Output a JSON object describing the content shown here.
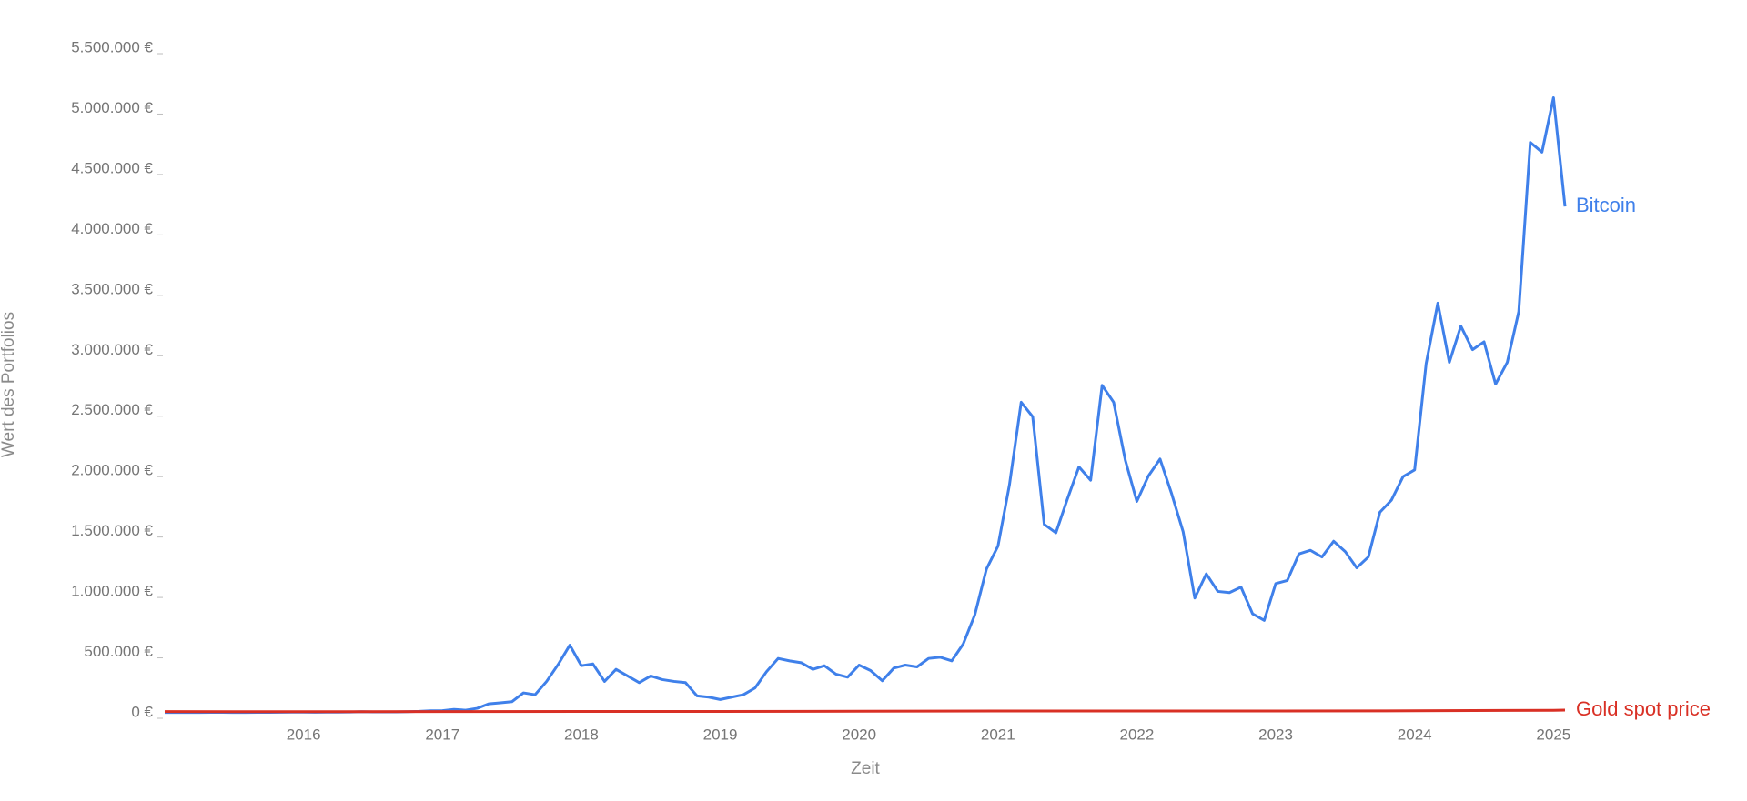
{
  "chart_data": {
    "type": "line",
    "x_label": "Zeit",
    "y_label": "Wert des Portfolios",
    "grid": false,
    "xlim": [
      2015,
      2025.083
    ],
    "xticks": [
      2016,
      2017,
      2018,
      2019,
      2020,
      2021,
      2022,
      2023,
      2024,
      2025
    ],
    "ylim": [
      0,
      5500000
    ],
    "yticks": [
      {
        "value": 0,
        "label": "0 €"
      },
      {
        "value": 500000,
        "label": "500.000 €"
      },
      {
        "value": 1000000,
        "label": "1.000.000 €"
      },
      {
        "value": 1500000,
        "label": "1.500.000 €"
      },
      {
        "value": 2000000,
        "label": "2.000.000 €"
      },
      {
        "value": 2500000,
        "label": "2.500.000 €"
      },
      {
        "value": 3000000,
        "label": "3.000.000 €"
      },
      {
        "value": 3500000,
        "label": "3.500.000 €"
      },
      {
        "value": 4000000,
        "label": "4.000.000 €"
      },
      {
        "value": 4500000,
        "label": "4.500.000 €"
      },
      {
        "value": 5000000,
        "label": "5.000.000 €"
      },
      {
        "value": 5500000,
        "label": "5.500.000 €"
      }
    ],
    "series": [
      {
        "name": "Bitcoin",
        "color": "#3f80ea",
        "x": [
          2015,
          2015.083,
          2015.167,
          2015.25,
          2015.333,
          2015.417,
          2015.5,
          2015.583,
          2015.667,
          2015.75,
          2015.833,
          2015.917,
          2016,
          2016.083,
          2016.167,
          2016.25,
          2016.333,
          2016.417,
          2016.5,
          2016.583,
          2016.667,
          2016.75,
          2016.833,
          2016.917,
          2017,
          2017.083,
          2017.167,
          2017.25,
          2017.333,
          2017.417,
          2017.5,
          2017.583,
          2017.667,
          2017.75,
          2017.833,
          2017.917,
          2018,
          2018.083,
          2018.167,
          2018.25,
          2018.333,
          2018.417,
          2018.5,
          2018.583,
          2018.667,
          2018.75,
          2018.833,
          2018.917,
          2019,
          2019.083,
          2019.167,
          2019.25,
          2019.333,
          2019.417,
          2019.5,
          2019.583,
          2019.667,
          2019.75,
          2019.833,
          2019.917,
          2020,
          2020.083,
          2020.167,
          2020.25,
          2020.333,
          2020.417,
          2020.5,
          2020.583,
          2020.667,
          2020.75,
          2020.833,
          2020.917,
          2021,
          2021.083,
          2021.167,
          2021.25,
          2021.333,
          2021.417,
          2021.5,
          2021.583,
          2021.667,
          2021.75,
          2021.833,
          2021.917,
          2022,
          2022.083,
          2022.167,
          2022.25,
          2022.333,
          2022.417,
          2022.5,
          2022.583,
          2022.667,
          2022.75,
          2022.833,
          2022.917,
          2023,
          2023.083,
          2023.167,
          2023.25,
          2023.333,
          2023.417,
          2023.5,
          2023.583,
          2023.667,
          2023.75,
          2023.833,
          2023.917,
          2024,
          2024.083,
          2024.167,
          2024.25,
          2024.333,
          2024.417,
          2024.5,
          2024.583,
          2024.667,
          2024.75,
          2024.833,
          2024.917,
          2025,
          2025.083
        ],
        "values": [
          3000,
          3000,
          3000,
          3000,
          3500,
          3500,
          3000,
          3200,
          3500,
          4000,
          5000,
          6000,
          5500,
          5000,
          5500,
          6000,
          6500,
          9000,
          8000,
          7500,
          8000,
          9500,
          12000,
          17000,
          18000,
          28000,
          22000,
          37000,
          74000,
          83000,
          92000,
          165000,
          150000,
          260000,
          400000,
          560000,
          390000,
          405000,
          260000,
          360000,
          305000,
          250000,
          305000,
          275000,
          260000,
          250000,
          140000,
          130000,
          110000,
          130000,
          150000,
          205000,
          340000,
          450000,
          430000,
          415000,
          360000,
          390000,
          320000,
          295000,
          395000,
          350000,
          265000,
          370000,
          395000,
          380000,
          450000,
          460000,
          430000,
          570000,
          810000,
          1190000,
          1380000,
          1890000,
          2570000,
          2450000,
          1560000,
          1490000,
          1770000,
          2035000,
          1925000,
          2710000,
          2570000,
          2090000,
          1750000,
          1960000,
          2100000,
          1815000,
          1500000,
          950000,
          1150000,
          1005000,
          995000,
          1040000,
          820000,
          765000,
          1070000,
          1095000,
          1315000,
          1345000,
          1290000,
          1420000,
          1335000,
          1200000,
          1290000,
          1660000,
          1760000,
          1955000,
          2010000,
          2890000,
          3390000,
          2900000,
          3200000,
          3005000,
          3070000,
          2720000,
          2900000,
          3320000,
          4720000,
          4640000,
          5090000,
          4190000
        ]
      },
      {
        "name": "Gold spot price",
        "color": "#d93025",
        "x": [
          2015,
          2016,
          2017,
          2018,
          2019,
          2020,
          2021,
          2022,
          2023,
          2024,
          2025,
          2025.083
        ],
        "values": [
          10000,
          9500,
          10700,
          11300,
          11000,
          13200,
          15300,
          14600,
          14800,
          16700,
          21000,
          22500
        ]
      }
    ]
  }
}
